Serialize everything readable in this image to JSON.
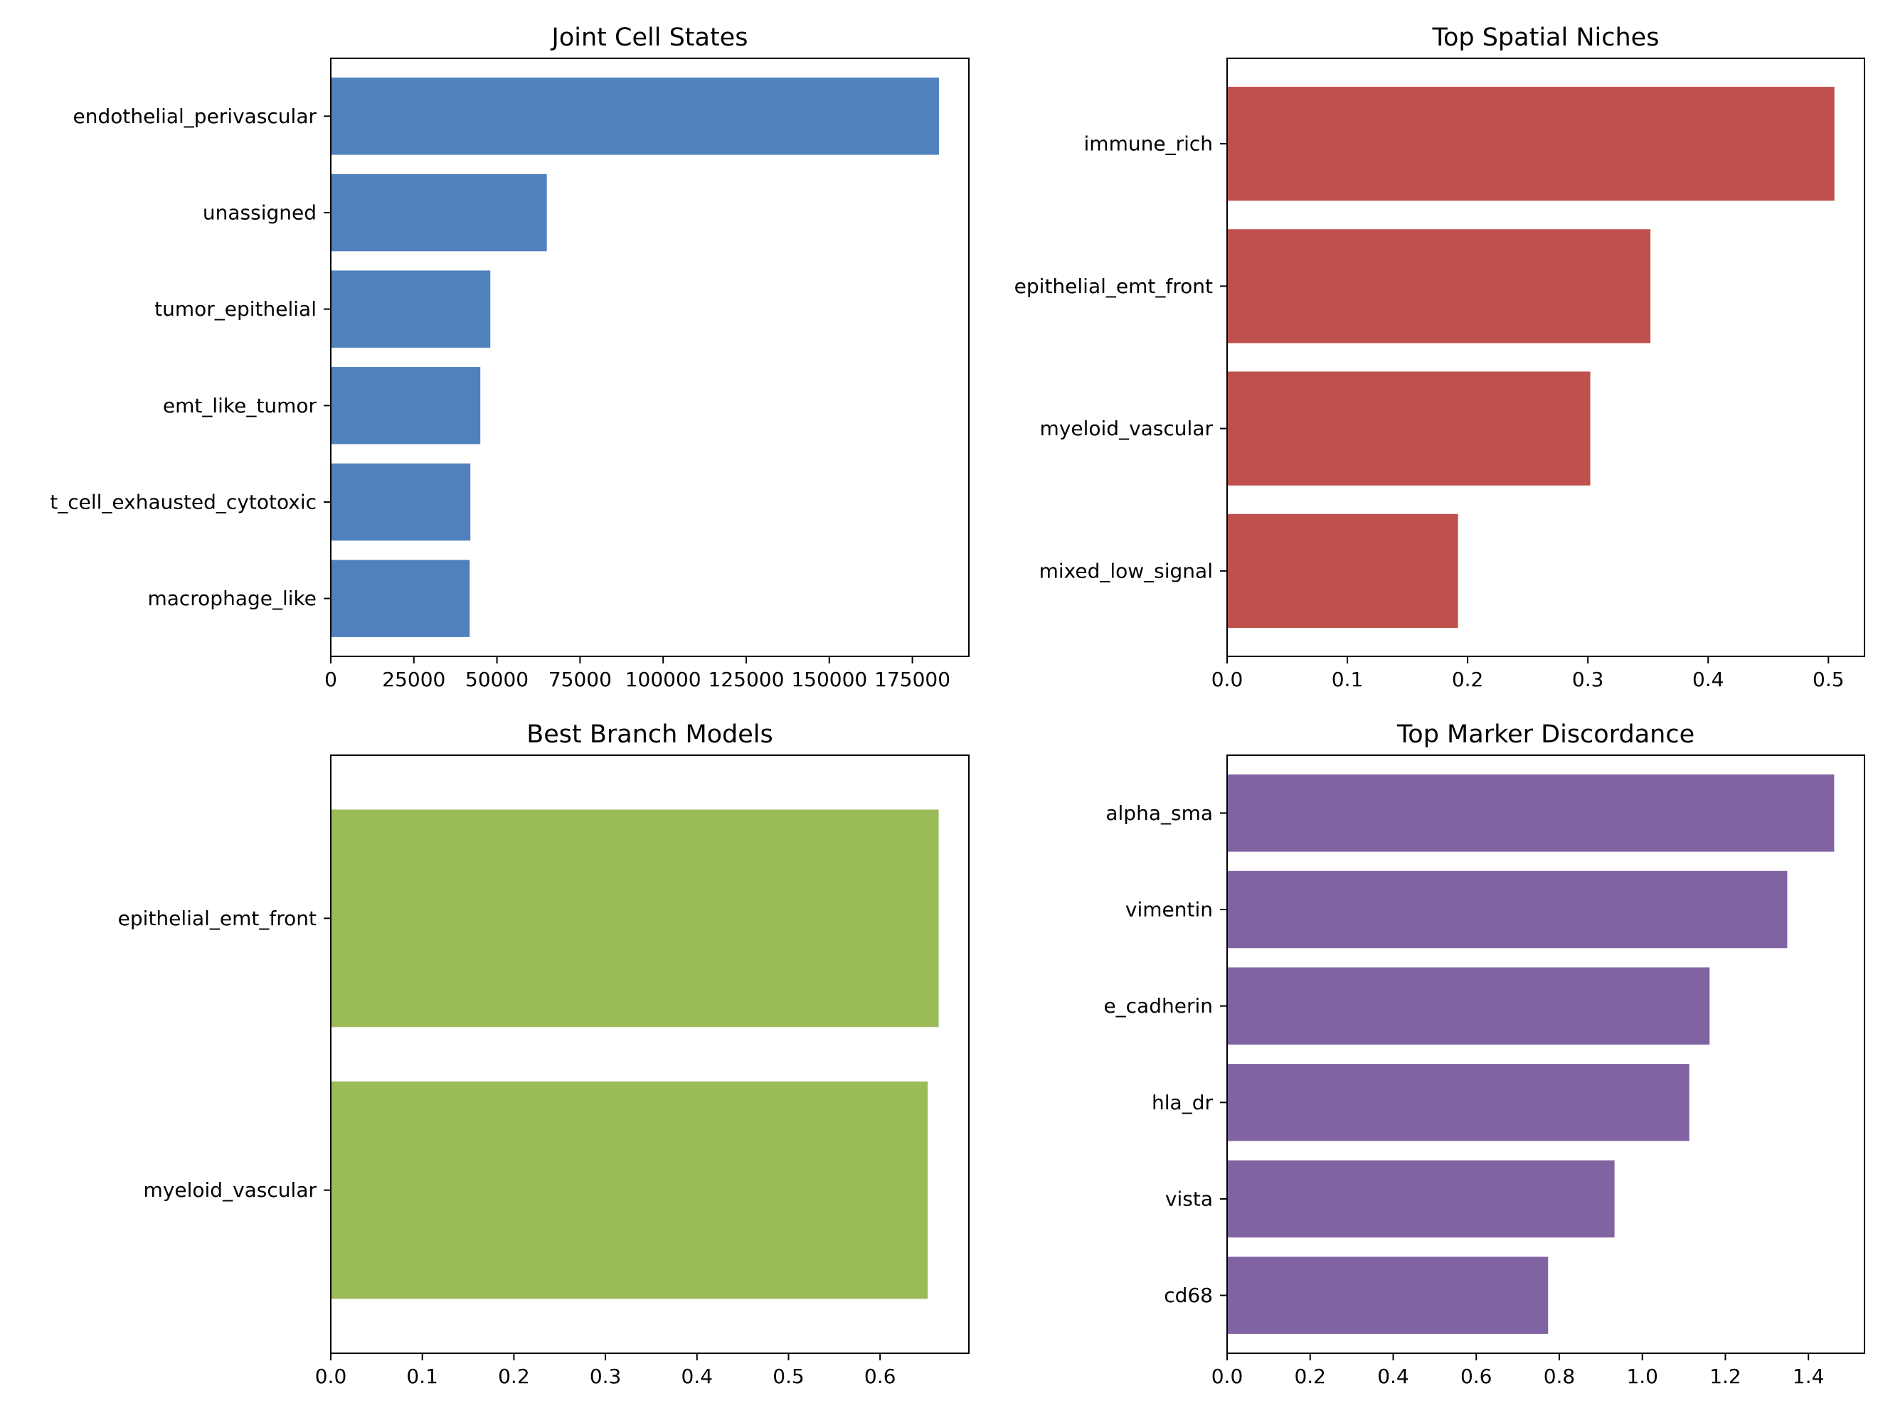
{
  "chart_data": [
    {
      "type": "bar",
      "orientation": "horizontal",
      "title": "Joint Cell States",
      "categories": [
        "endothelial_perivascular",
        "unassigned",
        "tumor_epithelial",
        "emt_like_tumor",
        "t_cell_exhausted_cytotoxic",
        "macrophage_like"
      ],
      "values": [
        183000,
        65000,
        48000,
        45000,
        42000,
        41800
      ],
      "xlim": [
        0,
        192000
      ],
      "xticks": [
        0,
        25000,
        50000,
        75000,
        100000,
        125000,
        150000,
        175000
      ],
      "xtick_labels": [
        "0",
        "25000",
        "50000",
        "75000",
        "100000",
        "125000",
        "150000",
        "175000"
      ],
      "color": "#4f81bd",
      "grid": false
    },
    {
      "type": "bar",
      "orientation": "horizontal",
      "title": "Top Spatial Niches",
      "categories": [
        "immune_rich",
        "epithelial_emt_front",
        "myeloid_vascular",
        "mixed_low_signal"
      ],
      "values": [
        0.505,
        0.352,
        0.302,
        0.192
      ],
      "xlim": [
        0,
        0.53
      ],
      "xticks": [
        0,
        0.1,
        0.2,
        0.3,
        0.4,
        0.5
      ],
      "xtick_labels": [
        "0.0",
        "0.1",
        "0.2",
        "0.3",
        "0.4",
        "0.5"
      ],
      "color": "#c0504d",
      "grid": false
    },
    {
      "type": "bar",
      "orientation": "horizontal",
      "title": "Best Branch Models",
      "categories": [
        "epithelial_emt_front",
        "myeloid_vascular"
      ],
      "values": [
        0.664,
        0.652
      ],
      "xlim": [
        0,
        0.697
      ],
      "xticks": [
        0,
        0.1,
        0.2,
        0.3,
        0.4,
        0.5,
        0.6
      ],
      "xtick_labels": [
        "0.0",
        "0.1",
        "0.2",
        "0.3",
        "0.4",
        "0.5",
        "0.6"
      ],
      "color": "#9bbb59",
      "grid": false
    },
    {
      "type": "bar",
      "orientation": "horizontal",
      "title": "Top Marker Discordance",
      "categories": [
        "alpha_sma",
        "vimentin",
        "e_cadherin",
        "hla_dr",
        "vista",
        "cd68"
      ],
      "values": [
        1.462,
        1.349,
        1.162,
        1.113,
        0.933,
        0.773
      ],
      "xlim": [
        0,
        1.535
      ],
      "xticks": [
        0,
        0.2,
        0.4,
        0.6,
        0.8,
        1.0,
        1.2,
        1.4
      ],
      "xtick_labels": [
        "0.0",
        "0.2",
        "0.4",
        "0.6",
        "0.8",
        "1.0",
        "1.2",
        "1.4"
      ],
      "color": "#8064a2",
      "grid": false
    }
  ]
}
